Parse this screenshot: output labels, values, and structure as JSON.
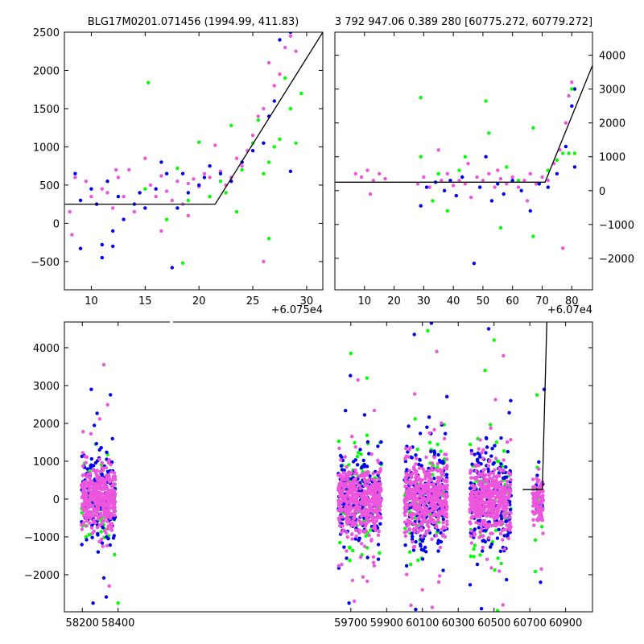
{
  "colors": {
    "green": "#00ff00",
    "blue": "#0000ee",
    "pink": "#ee55dd",
    "line": "#000000"
  },
  "chart_data": [
    {
      "type": "scatter",
      "title": "BLG17M0201.071456 (1994.99, 411.83)",
      "xlim": [
        7.5,
        31.5
      ],
      "ylim": [
        -870,
        2500
      ],
      "xticks": [
        10,
        15,
        20,
        25,
        30
      ],
      "yticks": [
        -500,
        0,
        500,
        1000,
        1500,
        2000,
        2500
      ],
      "x_offset_label": "+6.075e4",
      "yaxis_side": "left",
      "model_line": [
        [
          7.5,
          250
        ],
        [
          21.5,
          250
        ],
        [
          31.5,
          2500
        ]
      ],
      "series": [
        {
          "color": "pink",
          "points": [
            [
              8,
              150
            ],
            [
              8.5,
              600
            ],
            [
              9,
              300
            ],
            [
              9.5,
              550
            ],
            [
              10,
              350
            ],
            [
              10.5,
              250
            ],
            [
              11,
              450
            ],
            [
              11.5,
              400
            ],
            [
              12,
              200
            ],
            [
              12.5,
              600
            ],
            [
              13,
              350
            ],
            [
              13.5,
              700
            ],
            [
              14,
              150
            ],
            [
              14.5,
              400
            ],
            [
              15,
              850
            ],
            [
              15.5,
              500
            ],
            [
              16,
              350
            ],
            [
              16.5,
              620
            ],
            [
              17,
              420
            ],
            [
              17.5,
              300
            ],
            [
              18,
              550
            ],
            [
              18.5,
              250
            ],
            [
              19,
              520
            ],
            [
              19.5,
              580
            ],
            [
              20,
              480
            ],
            [
              20.5,
              650
            ],
            [
              21,
              600
            ],
            [
              21.5,
              1020
            ],
            [
              22,
              680
            ],
            [
              22.5,
              500
            ],
            [
              23,
              600
            ],
            [
              23.5,
              850
            ],
            [
              24,
              750
            ],
            [
              24.5,
              950
            ],
            [
              25,
              1150
            ],
            [
              25.5,
              1400
            ],
            [
              26,
              1500
            ],
            [
              26.5,
              2100
            ],
            [
              27,
              1800
            ],
            [
              27.5,
              1950
            ],
            [
              28,
              2300
            ],
            [
              28.5,
              2450
            ],
            [
              29,
              2250
            ],
            [
              8.2,
              -150
            ],
            [
              12.3,
              700
            ],
            [
              19,
              100
            ],
            [
              26,
              -500
            ],
            [
              16.5,
              -100
            ]
          ]
        },
        {
          "color": "blue",
          "points": [
            [
              8.5,
              650
            ],
            [
              9,
              -330
            ],
            [
              10,
              450
            ],
            [
              10.5,
              250
            ],
            [
              11,
              -280
            ],
            [
              11.5,
              550
            ],
            [
              12,
              -100
            ],
            [
              12.5,
              350
            ],
            [
              13,
              50
            ],
            [
              14,
              250
            ],
            [
              14.5,
              400
            ],
            [
              15,
              200
            ],
            [
              16,
              450
            ],
            [
              16.5,
              800
            ],
            [
              17,
              650
            ],
            [
              17.5,
              -580
            ],
            [
              18,
              200
            ],
            [
              18.5,
              650
            ],
            [
              19,
              400
            ],
            [
              20,
              500
            ],
            [
              20.5,
              600
            ],
            [
              21,
              750
            ],
            [
              22,
              650
            ],
            [
              23,
              550
            ],
            [
              24,
              800
            ],
            [
              25,
              950
            ],
            [
              26,
              1050
            ],
            [
              26.5,
              1400
            ],
            [
              27,
              1600
            ],
            [
              27.5,
              2400
            ],
            [
              28.5,
              2500
            ],
            [
              28.5,
              680
            ],
            [
              11,
              -450
            ],
            [
              12,
              -300
            ],
            [
              9,
              300
            ]
          ]
        },
        {
          "color": "green",
          "points": [
            [
              15.3,
              1840
            ],
            [
              15,
              450
            ],
            [
              18,
              720
            ],
            [
              18.5,
              -520
            ],
            [
              19,
              300
            ],
            [
              20,
              1060
            ],
            [
              21,
              350
            ],
            [
              22,
              550
            ],
            [
              23,
              1280
            ],
            [
              23.5,
              150
            ],
            [
              24,
              700
            ],
            [
              25,
              1050
            ],
            [
              25.5,
              1350
            ],
            [
              26,
              650
            ],
            [
              26.5,
              800
            ],
            [
              27,
              1000
            ],
            [
              27.5,
              1100
            ],
            [
              28,
              1900
            ],
            [
              28.5,
              1500
            ],
            [
              29,
              1050
            ],
            [
              29.5,
              1700
            ],
            [
              26.5,
              -200
            ],
            [
              17,
              50
            ],
            [
              22.5,
              400
            ]
          ]
        }
      ]
    },
    {
      "type": "scatter",
      "title": "3 792 947.06 0.389 280 [60775.272, 60779.272]",
      "xlim": [
        0,
        87
      ],
      "ylim": [
        -2930,
        4680
      ],
      "xticks": [
        10,
        20,
        30,
        40,
        50,
        60,
        70,
        80
      ],
      "yticks": [
        -2000,
        -1000,
        0,
        1000,
        2000,
        3000,
        4000
      ],
      "x_offset_label": "+6.07e4",
      "yaxis_side": "right",
      "model_line": [
        [
          0,
          250
        ],
        [
          71,
          250
        ],
        [
          87,
          3700
        ]
      ],
      "series": [
        {
          "color": "pink",
          "points": [
            [
              7,
              500
            ],
            [
              9,
              400
            ],
            [
              11,
              600
            ],
            [
              12,
              -100
            ],
            [
              13,
              300
            ],
            [
              15,
              500
            ],
            [
              17,
              350
            ],
            [
              28,
              200
            ],
            [
              30,
              400
            ],
            [
              32,
              100
            ],
            [
              35,
              1200
            ],
            [
              36,
              300
            ],
            [
              38,
              500
            ],
            [
              40,
              150
            ],
            [
              42,
              300
            ],
            [
              44,
              200
            ],
            [
              46,
              -200
            ],
            [
              48,
              400
            ],
            [
              50,
              300
            ],
            [
              52,
              500
            ],
            [
              54,
              100
            ],
            [
              56,
              350
            ],
            [
              58,
              200
            ],
            [
              60,
              400
            ],
            [
              62,
              100
            ],
            [
              64,
              300
            ],
            [
              66,
              500
            ],
            [
              68,
              200
            ],
            [
              70,
              400
            ],
            [
              72,
              300
            ],
            [
              74,
              800
            ],
            [
              76,
              1200
            ],
            [
              78,
              2000
            ],
            [
              79,
              2800
            ],
            [
              80,
              3200
            ],
            [
              77,
              -1700
            ],
            [
              65,
              -300
            ],
            [
              55,
              600
            ],
            [
              45,
              800
            ]
          ]
        },
        {
          "color": "blue",
          "points": [
            [
              29,
              -450
            ],
            [
              31,
              100
            ],
            [
              34,
              250
            ],
            [
              37,
              0
            ],
            [
              39,
              300
            ],
            [
              41,
              -150
            ],
            [
              43,
              400
            ],
            [
              47,
              -2150
            ],
            [
              49,
              100
            ],
            [
              51,
              1000
            ],
            [
              53,
              -300
            ],
            [
              55,
              200
            ],
            [
              57,
              -100
            ],
            [
              60,
              300
            ],
            [
              63,
              0
            ],
            [
              66,
              -600
            ],
            [
              69,
              200
            ],
            [
              72,
              100
            ],
            [
              75,
              500
            ],
            [
              78,
              1300
            ],
            [
              80,
              2500
            ],
            [
              81,
              3000
            ],
            [
              81,
              700
            ]
          ]
        },
        {
          "color": "green",
          "points": [
            [
              29,
              2750
            ],
            [
              29,
              1000
            ],
            [
              33,
              -300
            ],
            [
              35,
              500
            ],
            [
              38,
              -600
            ],
            [
              42,
              600
            ],
            [
              44,
              1000
            ],
            [
              51,
              2650
            ],
            [
              52,
              1700
            ],
            [
              56,
              -1100
            ],
            [
              58,
              700
            ],
            [
              62,
              300
            ],
            [
              67,
              1850
            ],
            [
              67,
              -1350
            ],
            [
              72,
              600
            ],
            [
              75,
              900
            ],
            [
              77,
              1100
            ],
            [
              79,
              1100
            ],
            [
              81,
              1100
            ],
            [
              80,
              3000
            ]
          ]
        }
      ]
    },
    {
      "type": "scatter",
      "xlim": [
        58100,
        61050
      ],
      "ylim": [
        -2980,
        4680
      ],
      "xticks": [
        58200,
        58400,
        59700,
        59900,
        60100,
        60300,
        60500,
        60700,
        60900
      ],
      "yticks": [
        -2000,
        -1000,
        0,
        1000,
        2000,
        3000,
        4000
      ],
      "yaxis_side": "left",
      "model_line": [
        [
          60660,
          250
        ],
        [
          60770,
          250
        ],
        [
          60795,
          4680
        ]
      ],
      "clusters": [
        {
          "x": 58290,
          "spread": 95,
          "n_pink": 420,
          "n_blue": 160,
          "n_green": 70,
          "ysd": 500
        },
        {
          "x": 59750,
          "spread": 120,
          "n_pink": 460,
          "n_blue": 200,
          "n_green": 90,
          "ysd": 550
        },
        {
          "x": 60120,
          "spread": 120,
          "n_pink": 460,
          "n_blue": 200,
          "n_green": 90,
          "ysd": 600
        },
        {
          "x": 60480,
          "spread": 115,
          "n_pink": 430,
          "n_blue": 190,
          "n_green": 80,
          "ysd": 600
        },
        {
          "x": 60745,
          "spread": 30,
          "n_pink": 90,
          "n_blue": 15,
          "n_green": 12,
          "ysd": 350
        }
      ],
      "outliers": [
        {
          "color": "pink",
          "points": [
            [
              58320,
              3550
            ],
            [
              59740,
              3150
            ],
            [
              60180,
              3900
            ],
            [
              59720,
              -2700
            ],
            [
              60100,
              -2400
            ],
            [
              60550,
              -2800
            ],
            [
              58350,
              -2300
            ]
          ]
        },
        {
          "color": "blue",
          "points": [
            [
              58250,
              2900
            ],
            [
              60055,
              4350
            ],
            [
              60470,
              4500
            ],
            [
              60150,
              4650
            ],
            [
              59690,
              -2750
            ],
            [
              60430,
              -2900
            ],
            [
              58260,
              -2750
            ],
            [
              60780,
              2900
            ],
            [
              60760,
              -2200
            ]
          ]
        },
        {
          "color": "green",
          "points": [
            [
              59700,
              3850
            ],
            [
              59790,
              3200
            ],
            [
              60130,
              4450
            ],
            [
              60450,
              3400
            ],
            [
              60500,
              4200
            ],
            [
              58400,
              -2750
            ],
            [
              60520,
              -2950
            ],
            [
              60740,
              2750
            ]
          ]
        }
      ]
    }
  ]
}
